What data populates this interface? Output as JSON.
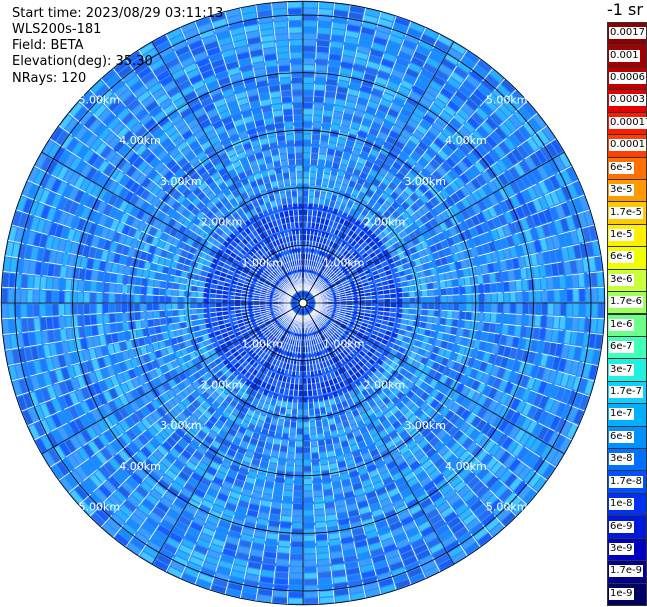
{
  "header": {
    "start_time": "Start time: 2023/08/29 03:11:13",
    "instrument": "WLS200s-181",
    "field": "Field: BETA",
    "elevation": "Elevation(deg): 35.30",
    "nrays": "NRays: 120"
  },
  "colorbar": {
    "unit": "-1 sr",
    "labels": [
      "0.0017",
      "0.001",
      "0.0006",
      "0.0003",
      "0.00017",
      "0.0001",
      "6e-5",
      "3e-5",
      "1.7e-5",
      "1e-5",
      "6e-6",
      "3e-6",
      "1.7e-6",
      "1e-6",
      "6e-7",
      "3e-7",
      "1.7e-7",
      "1e-7",
      "6e-8",
      "3e-8",
      "1.7e-8",
      "1e-8",
      "6e-9",
      "3e-9",
      "1.7e-9",
      "1e-9"
    ],
    "colors": [
      "#8b0000",
      "#a00000",
      "#c00000",
      "#e00000",
      "#ff1a00",
      "#ff4000",
      "#ff7000",
      "#ff9a00",
      "#ffc800",
      "#ffee00",
      "#f0ff00",
      "#c8ff3a",
      "#9cff5a",
      "#6cff8a",
      "#40ffb8",
      "#20f0e0",
      "#10d0ff",
      "#00b0ff",
      "#0090ff",
      "#0070ff",
      "#0050ff",
      "#0030f0",
      "#0018d8",
      "#0000c0",
      "#000090",
      "#000060"
    ]
  },
  "chart_data": {
    "type": "heatmap",
    "projection": "polar PPI",
    "range_rings_km": [
      1,
      2,
      3,
      4,
      5
    ],
    "ring_labels": [
      "1.00km",
      "2.00km",
      "3.00km",
      "4.00km",
      "5.00km"
    ],
    "nrays": 120,
    "field": "BETA",
    "value_range": [
      1e-09,
      0.0017
    ],
    "dominant_value_range": [
      3e-08,
      1e-07
    ]
  }
}
